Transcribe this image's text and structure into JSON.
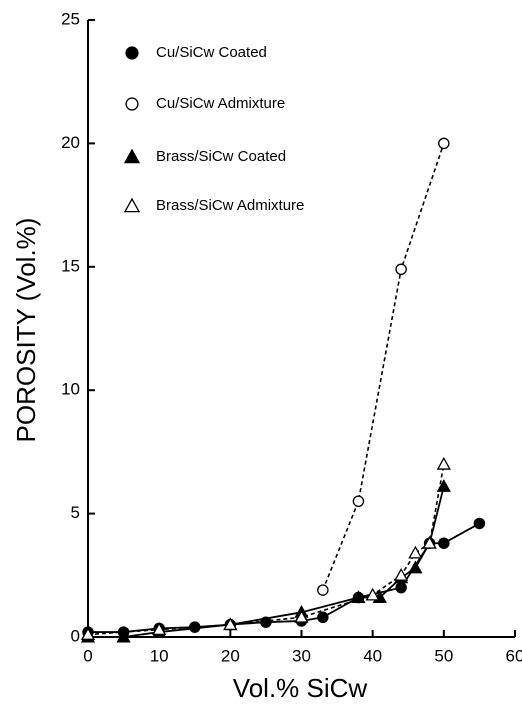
{
  "chart_data": {
    "type": "line",
    "xlabel": "Vol.% SiCw",
    "ylabel": "POROSITY (Vol.%)",
    "xlim": [
      0,
      60
    ],
    "ylim": [
      0,
      25
    ],
    "xticks": [
      0,
      10,
      20,
      30,
      40,
      50,
      60
    ],
    "yticks": [
      0,
      5,
      10,
      15,
      20,
      25
    ],
    "series": [
      {
        "name": "Cu/SiCw Coated",
        "color": "#000000",
        "marker": "circle",
        "filled": true,
        "linestyle": "solid",
        "x": [
          0,
          5,
          10,
          15,
          20,
          25,
          30,
          33,
          38,
          44,
          48,
          50,
          55
        ],
        "values": [
          0.2,
          0.2,
          0.35,
          0.4,
          0.5,
          0.6,
          0.65,
          0.8,
          1.6,
          2.0,
          3.8,
          3.8,
          4.6
        ]
      },
      {
        "name": "Cu/SiCw Admixture",
        "color": "#000000",
        "marker": "circle",
        "filled": false,
        "linestyle": "dashed",
        "x": [
          33,
          38,
          44,
          50
        ],
        "values": [
          1.9,
          5.5,
          14.9,
          20.0
        ]
      },
      {
        "name": "Brass/SiCw Coated",
        "color": "#000000",
        "marker": "triangle",
        "filled": true,
        "linestyle": "solid",
        "x": [
          0,
          5,
          10,
          20,
          30,
          38,
          41,
          44,
          46,
          48,
          50
        ],
        "values": [
          0.0,
          0.0,
          0.2,
          0.5,
          1.0,
          1.6,
          1.6,
          2.4,
          2.8,
          3.8,
          6.1
        ]
      },
      {
        "name": "Brass/SiCw Admixture",
        "color": "#000000",
        "marker": "triangle",
        "filled": false,
        "linestyle": "dashed",
        "x": [
          0,
          10,
          20,
          30,
          40,
          44,
          46,
          48,
          50
        ],
        "values": [
          0.1,
          0.3,
          0.5,
          0.8,
          1.7,
          2.5,
          3.4,
          3.8,
          7.0
        ]
      }
    ]
  }
}
